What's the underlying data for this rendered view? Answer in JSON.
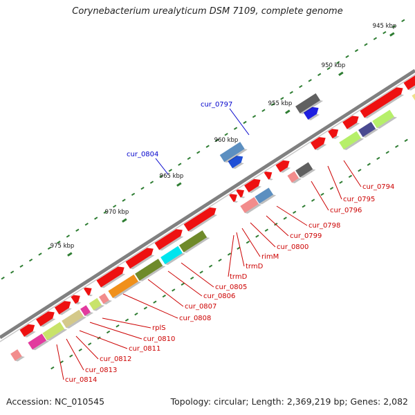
{
  "title": "Corynebacterium urealyticum DSM 7109, complete genome",
  "footer": {
    "accession": "Accession: NC_010545",
    "summary": "Topology: circular; Length: 2,369,219 bp; Genes: 2,082"
  },
  "colors": {
    "backbone": "#808080",
    "tick": "#2e7d32",
    "label_black": "#111111",
    "label_red": "#cc0000",
    "label_blue": "#0000cc"
  },
  "ticks": [
    {
      "label": "945 kbp"
    },
    {
      "label": "950 kbp"
    },
    {
      "label": "955 kbp"
    },
    {
      "label": "960 kbp"
    },
    {
      "label": "965 kbp"
    },
    {
      "label": "970 kbp"
    },
    {
      "label": "975 kbp"
    }
  ],
  "blue_labels": [
    "cur_0797",
    "cur_0804"
  ],
  "red_labels": [
    "cur_0794",
    "cur_0795",
    "cur_0796",
    "cur_0798",
    "cur_0799",
    "cur_0800",
    "rimM",
    "trmD",
    "trmD",
    "cur_0805",
    "cur_0806",
    "cur_0807",
    "cur_0808",
    "rplS",
    "cur_0810",
    "cur_0811",
    "cur_0812",
    "cur_0813",
    "cur_0814"
  ]
}
